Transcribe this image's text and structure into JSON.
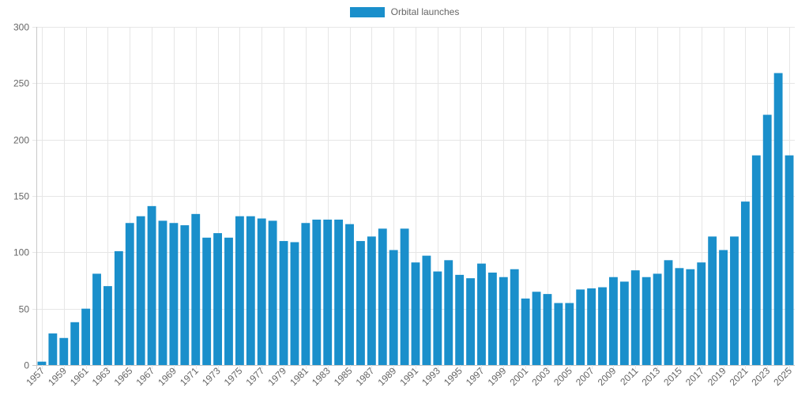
{
  "chart_data": {
    "type": "bar",
    "series": [
      {
        "name": "Orbital launches",
        "color": "#1a8fcb",
        "values": [
          3,
          28,
          24,
          38,
          50,
          81,
          70,
          101,
          126,
          132,
          141,
          128,
          126,
          124,
          134,
          113,
          117,
          113,
          132,
          132,
          130,
          128,
          110,
          109,
          126,
          129,
          129,
          129,
          125,
          110,
          114,
          121,
          102,
          121,
          91,
          97,
          83,
          93,
          80,
          77,
          90,
          82,
          78,
          85,
          59,
          65,
          63,
          55,
          55,
          67,
          68,
          69,
          78,
          74,
          84,
          78,
          81,
          93,
          86,
          85,
          91,
          114,
          102,
          114,
          145,
          186,
          222,
          259,
          186
        ]
      }
    ],
    "categories": [
      "1957",
      "1958",
      "1959",
      "1960",
      "1961",
      "1962",
      "1963",
      "1964",
      "1965",
      "1966",
      "1967",
      "1968",
      "1969",
      "1970",
      "1971",
      "1972",
      "1973",
      "1974",
      "1975",
      "1976",
      "1977",
      "1978",
      "1979",
      "1980",
      "1981",
      "1982",
      "1983",
      "1984",
      "1985",
      "1986",
      "1987",
      "1988",
      "1989",
      "1990",
      "1991",
      "1992",
      "1993",
      "1994",
      "1995",
      "1996",
      "1997",
      "1998",
      "1999",
      "2000",
      "2001",
      "2002",
      "2003",
      "2004",
      "2005",
      "2006",
      "2007",
      "2008",
      "2009",
      "2010",
      "2011",
      "2012",
      "2013",
      "2014",
      "2015",
      "2016",
      "2017",
      "2018",
      "2019",
      "2020",
      "2021",
      "2022",
      "2023",
      "2024",
      "2025"
    ],
    "x_tick_labels": [
      "1957",
      "1959",
      "1961",
      "1963",
      "1965",
      "1967",
      "1969",
      "1971",
      "1973",
      "1975",
      "1977",
      "1979",
      "1981",
      "1983",
      "1985",
      "1987",
      "1989",
      "1991",
      "1993",
      "1995",
      "1997",
      "1999",
      "2001",
      "2003",
      "2005",
      "2007",
      "2009",
      "2011",
      "2013",
      "2015",
      "2017",
      "2019",
      "2021",
      "2023",
      "2025"
    ],
    "y_ticks": [
      0,
      50,
      100,
      150,
      200,
      250,
      300
    ],
    "ylim": [
      0,
      300
    ],
    "grid": true,
    "legend": "top-center",
    "title": "",
    "xlabel": "",
    "ylabel": ""
  }
}
